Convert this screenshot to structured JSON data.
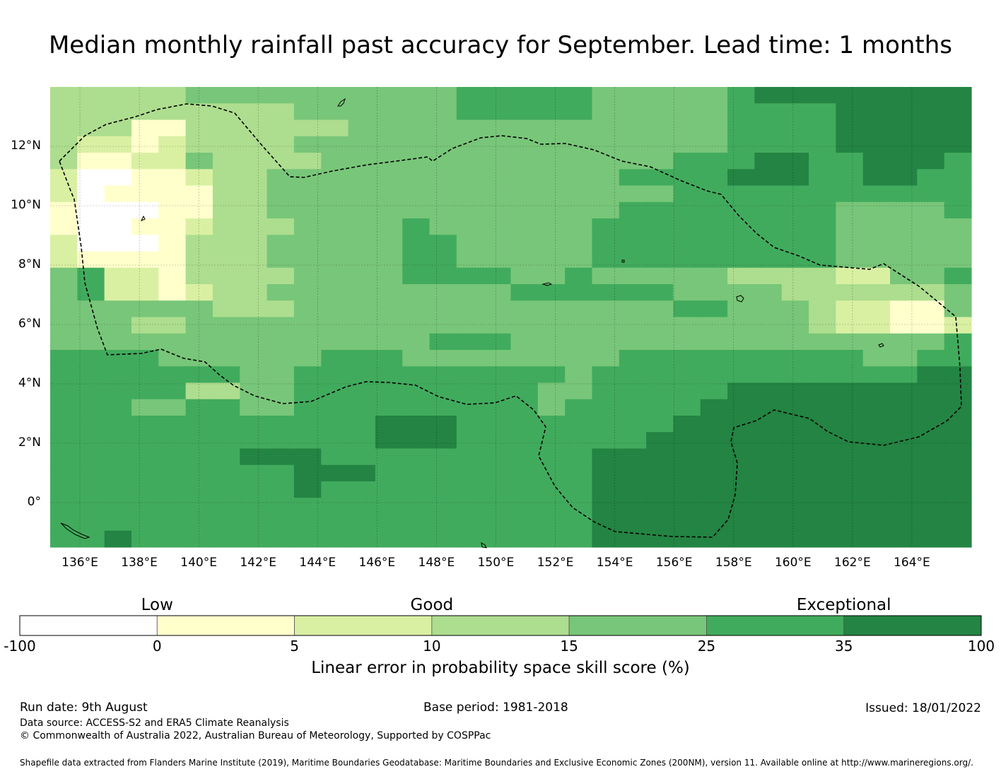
{
  "title": "Median monthly rainfall past accuracy for September. Lead time: 1 months",
  "map": {
    "lon_range": [
      135,
      166
    ],
    "lat_range": [
      -1.5,
      14
    ],
    "x_ticks": [
      136,
      138,
      140,
      142,
      144,
      146,
      148,
      150,
      152,
      154,
      156,
      158,
      160,
      162,
      164
    ],
    "x_tick_labels": [
      "136°E",
      "138°E",
      "140°E",
      "142°E",
      "144°E",
      "146°E",
      "148°E",
      "150°E",
      "152°E",
      "154°E",
      "156°E",
      "158°E",
      "160°E",
      "162°E",
      "164°E"
    ],
    "y_ticks": [
      12,
      10,
      8,
      6,
      4,
      2,
      0
    ],
    "y_tick_labels": [
      "12°N",
      "10°N",
      "8°N",
      "6°N",
      "4°N",
      "2°N",
      "0°"
    ],
    "grid": true,
    "eez_boundary": "dashed",
    "skill_grid_description": "Gridded skill categories; lighter (low skill) in the west near Palau, exceptional skill in the south-east."
  },
  "colorbar": {
    "categories": [
      {
        "label": "Low",
        "at": 0.5
      },
      {
        "label": "Good",
        "at": 2.5
      },
      {
        "label": "Exceptional",
        "at": 5.5
      }
    ],
    "bins": [
      {
        "from": "-100",
        "to": "0",
        "color": "#ffffff"
      },
      {
        "from": "0",
        "to": "5",
        "color": "#ffffcc"
      },
      {
        "from": "5",
        "to": "10",
        "color": "#d9f0a3"
      },
      {
        "from": "10",
        "to": "15",
        "color": "#addd8e"
      },
      {
        "from": "15",
        "to": "25",
        "color": "#78c679"
      },
      {
        "from": "25",
        "to": "35",
        "color": "#41ab5d"
      },
      {
        "from": "35",
        "to": "100",
        "color": "#238443"
      }
    ],
    "tick_labels": [
      "-100",
      "0",
      "5",
      "10",
      "15",
      "25",
      "35",
      "100"
    ],
    "label": "Linear error in probability space skill score (%)"
  },
  "footer": {
    "run_date": "Run date: 9th August",
    "base_period": "Base period: 1981-2018",
    "issued": "Issued: 18/01/2022",
    "data_source": "Data source: ACCESS-S2 and ERA5 Climate Reanalysis",
    "copyright": "© Commonwealth of Australia 2022, Australian Bureau of Meteorology, Supported by COSPPac",
    "shapefile": "Shapefile data extracted from Flanders Marine Institute (2019), Maritime Boundaries Geodatabase: Maritime Boundaries and Exclusive Economic Zones (200NM), version 11. Available online at http://www.marineregions.org/."
  }
}
